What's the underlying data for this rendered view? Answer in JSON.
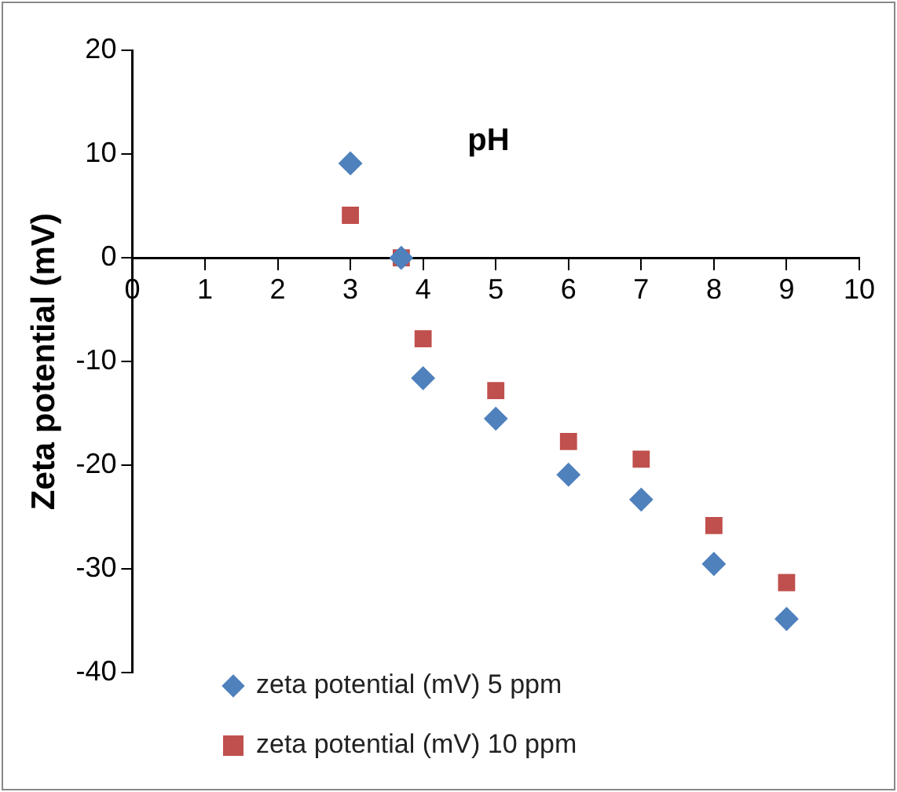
{
  "chart_data": {
    "type": "scatter",
    "xlabel": "pH",
    "ylabel": "Zeta potential (mV)",
    "xlim": [
      0,
      10
    ],
    "xticks": [
      0,
      1,
      2,
      3,
      4,
      5,
      6,
      7,
      8,
      9,
      10
    ],
    "ylim": [
      -40,
      20
    ],
    "yticks": [
      -40,
      -30,
      -20,
      -10,
      0,
      10,
      20
    ],
    "grid": false,
    "legend": "bottom",
    "series": [
      {
        "name": "zeta potential (mV) 5 ppm",
        "color": "#4f81bd",
        "marker": "diamond",
        "x": [
          3,
          3.7,
          4,
          5,
          6,
          7,
          8,
          9
        ],
        "values": [
          9.1,
          0,
          -11.6,
          -15.5,
          -20.9,
          -23.3,
          -29.5,
          -34.8
        ]
      },
      {
        "name": "zeta potential (mV) 10 ppm",
        "color": "#c0504d",
        "marker": "square",
        "x": [
          3,
          3.7,
          4,
          5,
          6,
          7,
          8,
          9
        ],
        "values": [
          4.1,
          0,
          -7.8,
          -12.8,
          -17.7,
          -19.4,
          -25.8,
          -31.3
        ]
      }
    ]
  }
}
